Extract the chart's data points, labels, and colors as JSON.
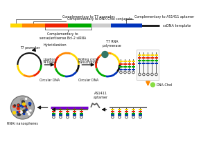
{
  "bg_color": "#ffffff",
  "colors": {
    "black": "#111111",
    "yellow": "#FFD700",
    "red": "#EE2200",
    "green": "#00AA00",
    "blue": "#0033BB",
    "purple": "#7700CC",
    "gray": "#888888",
    "teal": "#337766",
    "orange": "#FF8800",
    "light_gray": "#BBBBBB",
    "dark_gray": "#555555",
    "rainbow_gray": "#CCCCCC"
  },
  "labels": {
    "comp_t7": "Complementary to T7 promoter",
    "comp_dnachol": "Complementary to DNA-Chol conjugate",
    "comp_as1411": "Complementary to AS1411 aptamer",
    "ssdna": "ssDNA template",
    "comp_sirna": "Complementary to\nsense/antisense Bcl-2 siRNA",
    "hybridization": "Hybridization",
    "t7_promoter": "T7 promoter",
    "ligation": "Ligation\nT4 ligase",
    "circular_dna1": "Circular DNA",
    "rolling": "Rolling circle\ntranscription",
    "circular_dna2": "Circular DNA",
    "t7_rna_pol": "T7 RNA\npolymerase",
    "dna_chol": "DNA-Chol",
    "as1411": "AS1411\naptamer",
    "rnai": "RNAi nanospheres"
  }
}
